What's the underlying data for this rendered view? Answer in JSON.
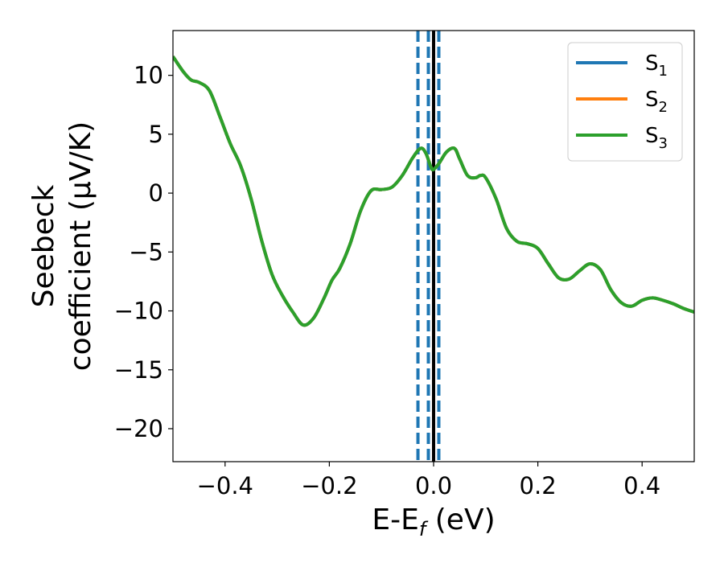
{
  "chart_data": {
    "type": "line",
    "xlabel": {
      "main": "E-E",
      "sub": "f",
      "rest": " (eV)"
    },
    "ylabel": {
      "line1": "Seebeck",
      "line2": "coefficient  (μV/K)"
    },
    "xlim": [
      -0.5,
      0.5
    ],
    "ylim": [
      -22.8,
      13.8
    ],
    "x_ticks": [
      -0.4,
      -0.2,
      0.0,
      0.2,
      0.4
    ],
    "x_tick_labels": [
      "−0.4",
      "−0.2",
      "0.0",
      "0.2",
      "0.4"
    ],
    "y_ticks": [
      10,
      5,
      0,
      -5,
      -10,
      -15,
      -20
    ],
    "y_tick_labels": [
      "10",
      "5",
      "0",
      "−5",
      "−10",
      "−15",
      "−20"
    ],
    "grid": false,
    "legend_position": "top-right",
    "legend": [
      {
        "base": "S",
        "sub": "1",
        "color": "#1f77b4"
      },
      {
        "base": "S",
        "sub": "2",
        "color": "#ff7f0e"
      },
      {
        "base": "S",
        "sub": "3",
        "color": "#2ca02c"
      }
    ],
    "series_points": {
      "x": [
        -0.5,
        -0.48,
        -0.465,
        -0.45,
        -0.43,
        -0.41,
        -0.39,
        -0.37,
        -0.35,
        -0.33,
        -0.31,
        -0.29,
        -0.27,
        -0.25,
        -0.23,
        -0.21,
        -0.195,
        -0.18,
        -0.16,
        -0.14,
        -0.12,
        -0.1,
        -0.08,
        -0.06,
        -0.04,
        -0.025,
        -0.015,
        -0.005,
        0.0,
        0.01,
        0.025,
        0.04,
        0.05,
        0.065,
        0.08,
        0.09,
        0.1,
        0.12,
        0.14,
        0.16,
        0.18,
        0.2,
        0.22,
        0.24,
        0.26,
        0.28,
        0.3,
        0.32,
        0.34,
        0.36,
        0.38,
        0.4,
        0.42,
        0.44,
        0.46,
        0.48,
        0.5
      ],
      "y": [
        11.6,
        10.3,
        9.6,
        9.4,
        8.7,
        6.5,
        4.2,
        2.3,
        -0.5,
        -4.0,
        -6.9,
        -8.7,
        -10.1,
        -11.2,
        -10.6,
        -8.9,
        -7.4,
        -6.4,
        -4.3,
        -1.5,
        0.2,
        0.3,
        0.5,
        1.5,
        3.0,
        3.8,
        3.4,
        2.2,
        2.0,
        2.5,
        3.5,
        3.8,
        2.9,
        1.5,
        1.3,
        1.5,
        1.3,
        -0.5,
        -3.0,
        -4.1,
        -4.3,
        -4.7,
        -6.0,
        -7.2,
        -7.3,
        -6.6,
        -6.0,
        -6.5,
        -8.2,
        -9.3,
        -9.6,
        -9.1,
        -8.9,
        -9.1,
        -9.4,
        -9.8,
        -10.1
      ]
    },
    "fermi_line": {
      "x": 0.0,
      "color": "#000000",
      "style": "solid"
    },
    "dashed_lines": {
      "x": [
        -0.03,
        -0.01,
        0.01
      ],
      "color": "#1f77b4",
      "style": "dashed"
    }
  }
}
